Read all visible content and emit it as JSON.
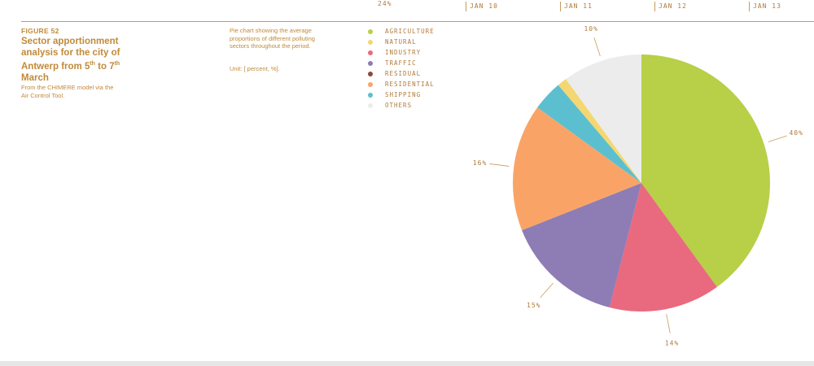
{
  "header": {
    "tick_pct": "24%",
    "dates": [
      "JAN 10",
      "JAN 11",
      "JAN 12",
      "JAN 13"
    ]
  },
  "figure": {
    "label": "FIGURE 52",
    "title_part1": "Sector apportionment analysis for the city of Antwerp from 5",
    "title_sup1": "th",
    "title_part2": " to 7",
    "title_sup2": "th",
    "title_part3": " March",
    "source": "From the CHIMERE model via the Air Control Tool.",
    "description": "Pie chart showing the average proportions of different polluting sectors throughout the period.",
    "unit": "Unit: [ percent, %]."
  },
  "chart_data": {
    "type": "pie",
    "title": "",
    "start": "top",
    "direction": "clockwise",
    "slices": [
      {
        "name": "AGRICULTURE",
        "value": 40,
        "color": "#b8cf48",
        "label": "40%"
      },
      {
        "name": "INDUSTRY",
        "value": 14,
        "color": "#e96a7e",
        "label": "14%"
      },
      {
        "name": "TRAFFIC",
        "value": 15,
        "color": "#8e7cb5",
        "label": "15%"
      },
      {
        "name": "RESIDENTIAL",
        "value": 16,
        "color": "#f9a466",
        "label": "16%"
      },
      {
        "name": "SHIPPING",
        "value": 3.8,
        "color": "#5bbfd0",
        "label": ""
      },
      {
        "name": "NATURAL",
        "value": 1.2,
        "color": "#f4d770",
        "label": ""
      },
      {
        "name": "RESIDUAL",
        "value": 0,
        "color": "#8a4a3a",
        "label": ""
      },
      {
        "name": "OTHERS",
        "value": 10,
        "color": "#ececec",
        "label": "10%"
      }
    ],
    "legend": [
      {
        "name": "AGRICULTURE",
        "color": "#b8cf48"
      },
      {
        "name": "NATURAL",
        "color": "#f4d770"
      },
      {
        "name": "INDUSTRY",
        "color": "#e96a7e"
      },
      {
        "name": "TRAFFIC",
        "color": "#8e7cb5"
      },
      {
        "name": "RESIDUAL",
        "color": "#8a4a3a"
      },
      {
        "name": "RESIDENTIAL",
        "color": "#f9a466"
      },
      {
        "name": "SHIPPING",
        "color": "#5bbfd0"
      },
      {
        "name": "OTHERS",
        "color": "#ececec"
      }
    ],
    "legend_position": "top-left"
  }
}
